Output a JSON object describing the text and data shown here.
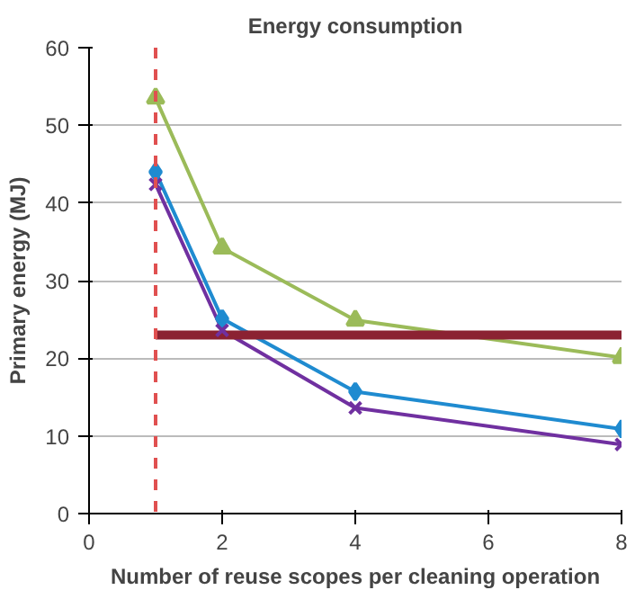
{
  "chart_data": {
    "type": "line",
    "title": "Energy consumption",
    "xlabel": "Number of reuse scopes per cleaning operation",
    "ylabel": "Primary energy (MJ)",
    "x": [
      1,
      2,
      4,
      8
    ],
    "xlim": [
      0,
      8
    ],
    "xticks": [
      0,
      2,
      4,
      6,
      8
    ],
    "ylim": [
      0,
      60
    ],
    "yticks": [
      0,
      10,
      20,
      30,
      40,
      50,
      60
    ],
    "grid": "y",
    "series": [
      {
        "color": "#9bbb59",
        "marker": "triangle",
        "values": [
          53.5,
          34.2,
          24.9,
          20.1
        ]
      },
      {
        "color": "#1f8bd0",
        "marker": "diamond",
        "values": [
          44,
          25.1,
          15.7,
          10.9
        ]
      },
      {
        "color": "#7030a0",
        "marker": "cross",
        "values": [
          42.4,
          23.6,
          13.6,
          8.9
        ]
      },
      {
        "color": "#8b2232",
        "marker": "none",
        "x": [
          1,
          8
        ],
        "values": [
          23,
          23
        ]
      }
    ],
    "ref_lines": [
      {
        "axis": "x",
        "value": 1,
        "color": "#e05050",
        "line_style": "dashed"
      }
    ]
  }
}
